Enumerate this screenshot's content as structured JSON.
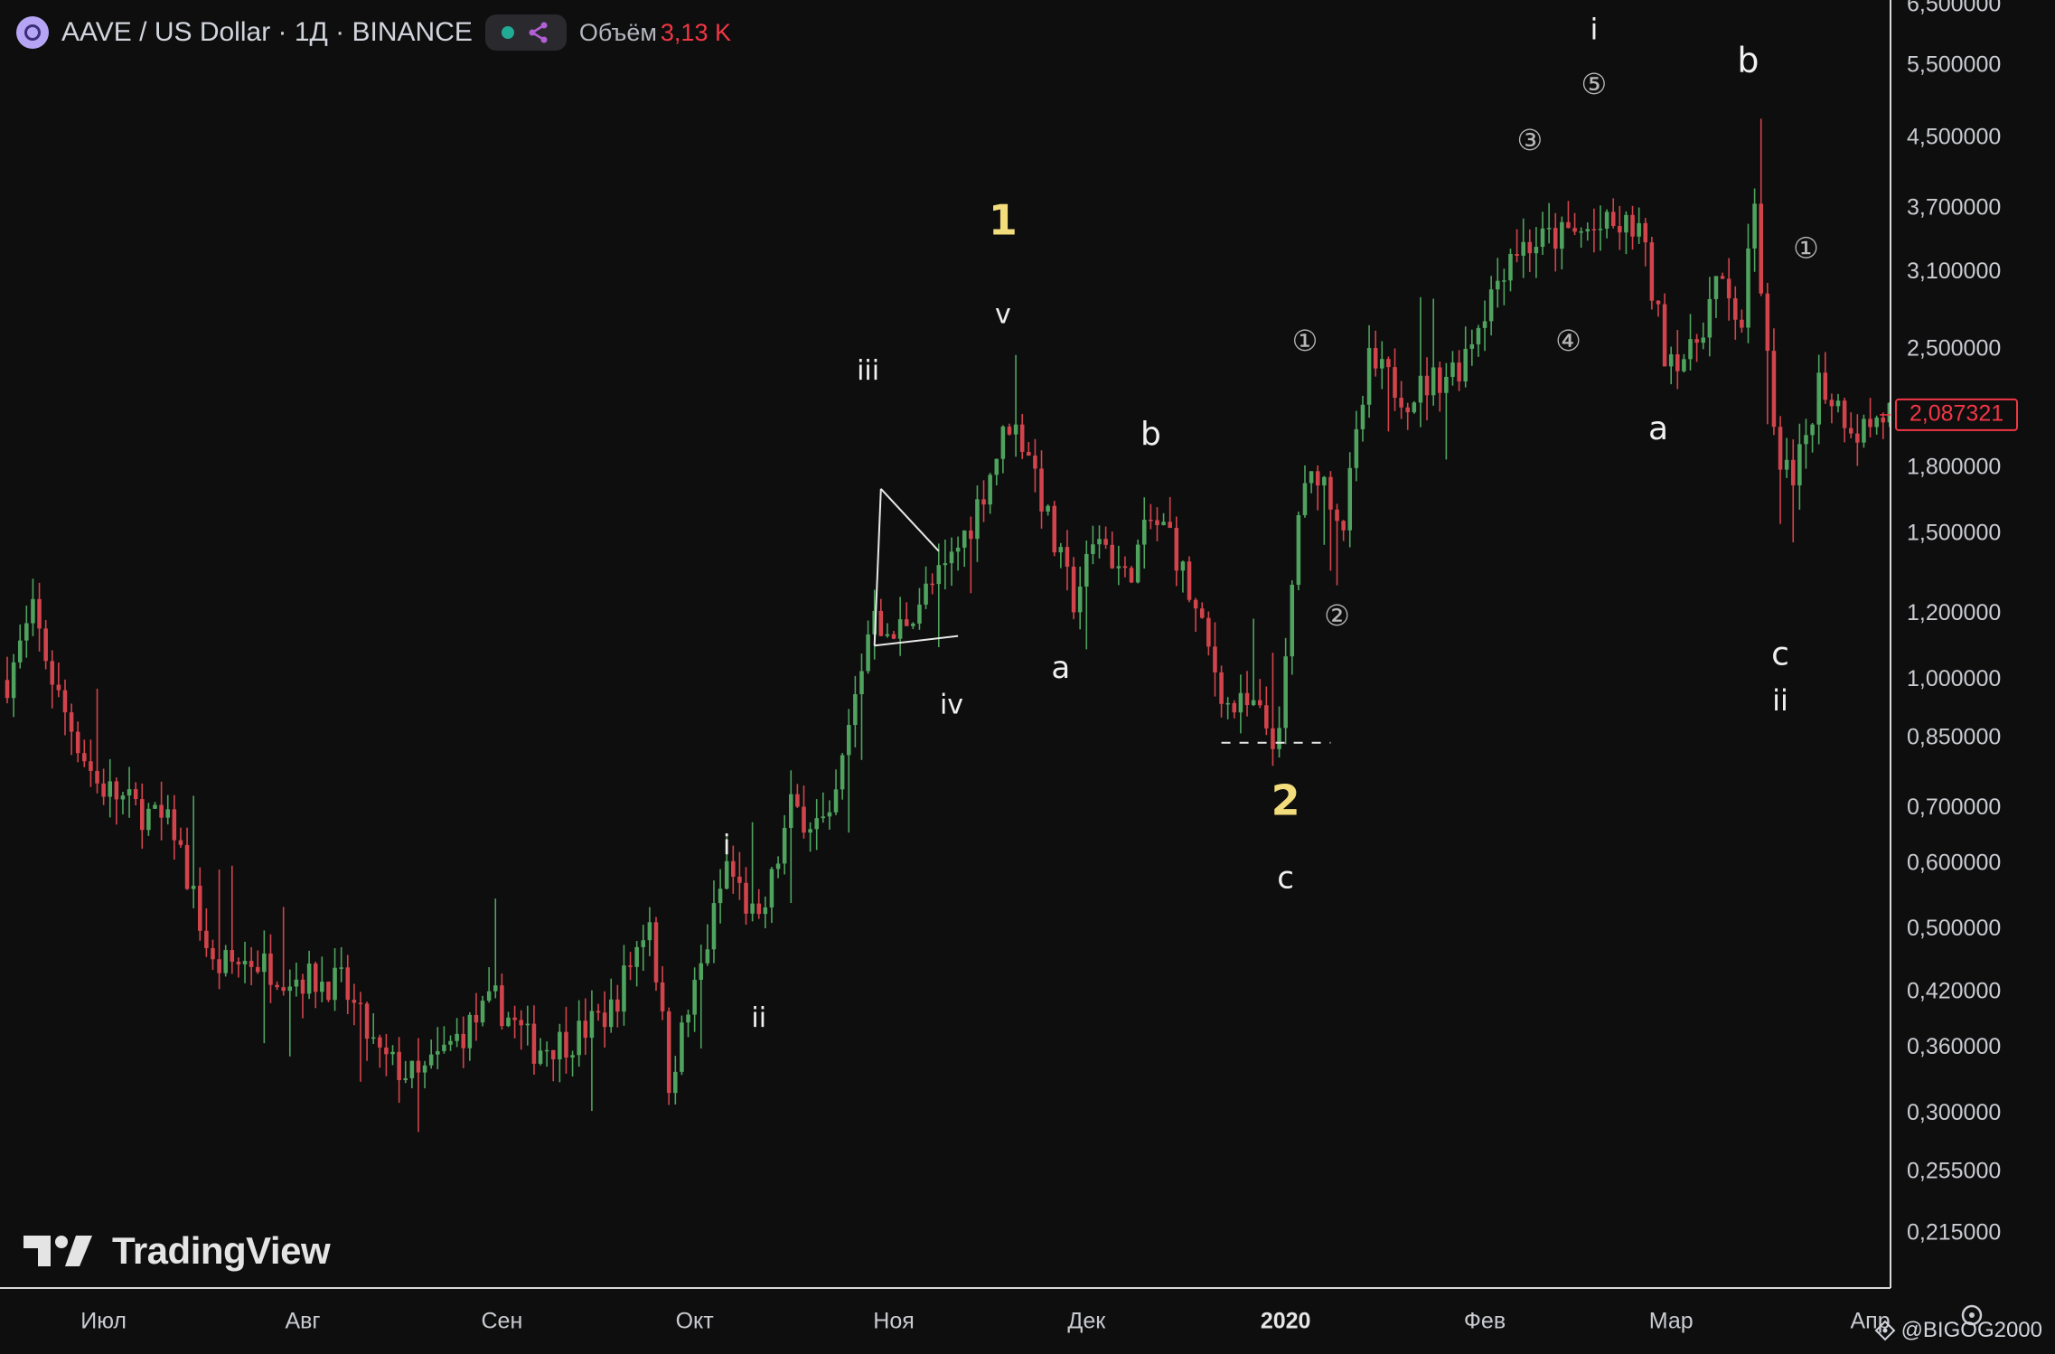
{
  "header": {
    "title": "AAVE / US Dollar · 1Д · BINANCE",
    "volume_label": "Объём",
    "volume_value": "3,13 K"
  },
  "watermark": "TradingView",
  "credit": "@BIGOG2000",
  "colors": {
    "up": "#4fa35f",
    "down": "#d2444c",
    "background": "#0e0e0e",
    "price_tag": "#f23645",
    "label_yellow": "#f2dc7c"
  },
  "chart_data": {
    "type": "candlestick",
    "scale": "log",
    "ylim": [
      0.185,
      6.6
    ],
    "price_ticks": [
      {
        "v": 6.5,
        "label": "6,500000"
      },
      {
        "v": 5.5,
        "label": "5,500000"
      },
      {
        "v": 4.5,
        "label": "4,500000"
      },
      {
        "v": 3.7,
        "label": "3,700000"
      },
      {
        "v": 3.1,
        "label": "3,100000"
      },
      {
        "v": 2.5,
        "label": "2,500000"
      },
      {
        "v": 1.8,
        "label": "1,800000"
      },
      {
        "v": 1.5,
        "label": "1,500000"
      },
      {
        "v": 1.2,
        "label": "1,200000"
      },
      {
        "v": 1.0,
        "label": "1,000000"
      },
      {
        "v": 0.85,
        "label": "0,850000"
      },
      {
        "v": 0.7,
        "label": "0,700000"
      },
      {
        "v": 0.6,
        "label": "0,600000"
      },
      {
        "v": 0.5,
        "label": "0,500000"
      },
      {
        "v": 0.42,
        "label": "0,420000"
      },
      {
        "v": 0.36,
        "label": "0,360000"
      },
      {
        "v": 0.3,
        "label": "0,300000"
      },
      {
        "v": 0.255,
        "label": "0,255000"
      },
      {
        "v": 0.215,
        "label": "0,215000"
      }
    ],
    "time_ticks": [
      {
        "d": 15,
        "label": "Июл",
        "bold": false
      },
      {
        "d": 46,
        "label": "Авг",
        "bold": false
      },
      {
        "d": 77,
        "label": "Сен",
        "bold": false
      },
      {
        "d": 107,
        "label": "Окт",
        "bold": false
      },
      {
        "d": 138,
        "label": "Ноя",
        "bold": false
      },
      {
        "d": 168,
        "label": "Дек",
        "bold": false
      },
      {
        "d": 199,
        "label": "2020",
        "bold": true
      },
      {
        "d": 230,
        "label": "Фев",
        "bold": false
      },
      {
        "d": 259,
        "label": "Мар",
        "bold": false
      },
      {
        "d": 290,
        "label": "Апр",
        "bold": false
      }
    ],
    "last_price": {
      "v": 2.087321,
      "label": "2,087321"
    },
    "anchors": [
      [
        0,
        1.0
      ],
      [
        4,
        1.2
      ],
      [
        8,
        0.95
      ],
      [
        14,
        0.75
      ],
      [
        20,
        0.7
      ],
      [
        26,
        0.66
      ],
      [
        32,
        0.45
      ],
      [
        38,
        0.46
      ],
      [
        44,
        0.44
      ],
      [
        52,
        0.43
      ],
      [
        58,
        0.35
      ],
      [
        64,
        0.33
      ],
      [
        70,
        0.37
      ],
      [
        76,
        0.41
      ],
      [
        82,
        0.36
      ],
      [
        88,
        0.37
      ],
      [
        94,
        0.4
      ],
      [
        100,
        0.52
      ],
      [
        103,
        0.33
      ],
      [
        108,
        0.45
      ],
      [
        112,
        0.6
      ],
      [
        117,
        0.5
      ],
      [
        122,
        0.7
      ],
      [
        128,
        0.66
      ],
      [
        132,
        0.95
      ],
      [
        135,
        1.25
      ],
      [
        137,
        1.1
      ],
      [
        142,
        1.25
      ],
      [
        146,
        1.35
      ],
      [
        150,
        1.55
      ],
      [
        156,
        2.05
      ],
      [
        159,
        1.9
      ],
      [
        163,
        1.45
      ],
      [
        166,
        1.25
      ],
      [
        170,
        1.5
      ],
      [
        174,
        1.32
      ],
      [
        178,
        1.55
      ],
      [
        181,
        1.5
      ],
      [
        185,
        1.2
      ],
      [
        190,
        0.93
      ],
      [
        194,
        0.92
      ],
      [
        198,
        0.84
      ],
      [
        201,
        1.6
      ],
      [
        204,
        1.8
      ],
      [
        208,
        1.55
      ],
      [
        212,
        2.4
      ],
      [
        218,
        2.2
      ],
      [
        226,
        2.4
      ],
      [
        234,
        3.3
      ],
      [
        240,
        3.4
      ],
      [
        248,
        3.5
      ],
      [
        254,
        3.5
      ],
      [
        258,
        2.5
      ],
      [
        262,
        2.45
      ],
      [
        266,
        3.0
      ],
      [
        270,
        2.7
      ],
      [
        272,
        3.7
      ],
      [
        275,
        1.95
      ],
      [
        278,
        1.7
      ],
      [
        282,
        2.3
      ],
      [
        288,
        2.0
      ],
      [
        293,
        2.1
      ]
    ],
    "range": {
      "day_start": 0,
      "day_end": 294
    },
    "triangle": [
      [
        136,
        1.7
      ],
      [
        145,
        1.43
      ],
      [
        148,
        1.13
      ],
      [
        135,
        1.1
      ]
    ],
    "support_line": {
      "v": 0.84,
      "d_from": 189,
      "d_to": 206
    },
    "wave_labels": [
      {
        "text": "1",
        "d": 155,
        "v": 3.55,
        "size": 46,
        "style": "yellow"
      },
      {
        "text": "v",
        "d": 155,
        "v": 2.75,
        "size": 30,
        "style": "white"
      },
      {
        "text": "iii",
        "d": 134,
        "v": 2.35,
        "size": 30,
        "style": "white"
      },
      {
        "text": "iv",
        "d": 147,
        "v": 0.93,
        "size": 30,
        "style": "white"
      },
      {
        "text": "i",
        "d": 112,
        "v": 0.63,
        "size": 30,
        "style": "white"
      },
      {
        "text": "ii",
        "d": 117,
        "v": 0.39,
        "size": 30,
        "style": "white"
      },
      {
        "text": "a",
        "d": 164,
        "v": 1.03,
        "size": 34,
        "style": "white"
      },
      {
        "text": "b",
        "d": 178,
        "v": 1.97,
        "size": 36,
        "style": "white"
      },
      {
        "text": "2",
        "d": 199,
        "v": 0.71,
        "size": 46,
        "style": "yellow"
      },
      {
        "text": "c",
        "d": 199,
        "v": 0.575,
        "size": 34,
        "style": "white"
      },
      {
        "text": "①",
        "d": 202,
        "v": 2.55,
        "size": 32,
        "style": "gray"
      },
      {
        "text": "②",
        "d": 207,
        "v": 1.19,
        "size": 32,
        "style": "gray"
      },
      {
        "text": "③",
        "d": 237,
        "v": 4.45,
        "size": 32,
        "style": "gray"
      },
      {
        "text": "④",
        "d": 243,
        "v": 2.55,
        "size": 32,
        "style": "gray"
      },
      {
        "text": "⑤",
        "d": 247,
        "v": 5.2,
        "size": 32,
        "style": "gray"
      },
      {
        "text": "i",
        "d": 247,
        "v": 6.05,
        "size": 32,
        "style": "white"
      },
      {
        "text": "a",
        "d": 257,
        "v": 2.0,
        "size": 36,
        "style": "white"
      },
      {
        "text": "b",
        "d": 271,
        "v": 5.55,
        "size": 38,
        "style": "white"
      },
      {
        "text": "①",
        "d": 280,
        "v": 3.3,
        "size": 32,
        "style": "gray"
      },
      {
        "text": "c",
        "d": 276,
        "v": 1.07,
        "size": 36,
        "style": "white"
      },
      {
        "text": "ii",
        "d": 276,
        "v": 0.94,
        "size": 32,
        "style": "white"
      }
    ]
  }
}
